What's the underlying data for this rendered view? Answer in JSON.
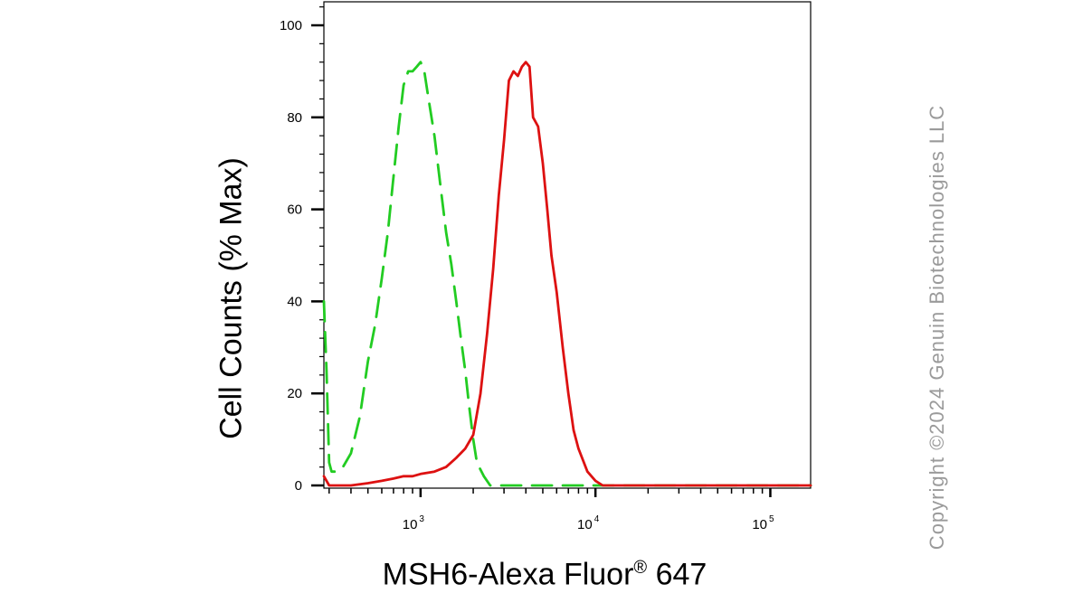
{
  "chart_data": {
    "type": "line",
    "xlabel_main": "MSH6-Alexa Fluor",
    "xlabel_reg": "®",
    "xlabel_tail": " 647",
    "ylabel": "Cell Counts (% Max)",
    "x_scale": "log",
    "xlim": [
      280,
      170000
    ],
    "ylim": [
      0,
      105
    ],
    "y_ticks": [
      0,
      20,
      40,
      60,
      80,
      100
    ],
    "x_ticks": [
      {
        "value": 1000,
        "base": "10",
        "exp": "3"
      },
      {
        "value": 10000,
        "base": "10",
        "exp": "4"
      },
      {
        "value": 100000,
        "base": "10",
        "exp": "5"
      }
    ],
    "grid": false,
    "series": [
      {
        "color": "#22cc22",
        "style": "dashed",
        "x": [
          280,
          290,
          300,
          310,
          330,
          360,
          400,
          450,
          500,
          550,
          600,
          650,
          700,
          750,
          800,
          850,
          900,
          950,
          1000,
          1050,
          1100,
          1200,
          1300,
          1400,
          1500,
          1600,
          1700,
          1800,
          1900,
          2000,
          2100,
          2300,
          2500,
          3000,
          3500,
          4000,
          5000,
          6000,
          8000,
          10000,
          20000,
          50000,
          100000,
          170000
        ],
        "y": [
          40,
          25,
          5,
          3,
          3,
          4,
          7,
          15,
          27,
          35,
          45,
          55,
          67,
          78,
          87,
          90,
          90,
          91,
          92,
          90,
          85,
          76,
          65,
          55,
          48,
          40,
          32,
          25,
          17,
          10,
          5,
          2,
          0,
          0,
          0,
          0,
          0,
          0,
          0,
          0,
          0,
          0,
          0,
          0
        ]
      },
      {
        "color": "#dd1111",
        "style": "solid",
        "x": [
          280,
          300,
          350,
          400,
          500,
          600,
          700,
          800,
          900,
          1000,
          1200,
          1400,
          1600,
          1800,
          2000,
          2200,
          2400,
          2600,
          2800,
          3000,
          3200,
          3400,
          3600,
          3800,
          4000,
          4200,
          4400,
          4700,
          5000,
          5300,
          5600,
          6000,
          6500,
          7000,
          7500,
          8000,
          9000,
          10000,
          11000,
          13000,
          20000,
          50000,
          100000,
          170000
        ],
        "y": [
          2,
          0,
          0,
          0,
          0.5,
          1,
          1.5,
          2,
          2,
          2.5,
          3,
          4,
          6,
          8,
          11,
          20,
          33,
          47,
          63,
          75,
          88,
          90,
          89,
          91,
          92,
          91,
          80,
          78,
          70,
          60,
          50,
          42,
          30,
          20,
          12,
          8,
          3,
          1,
          0,
          0,
          0,
          0,
          0,
          0
        ]
      }
    ]
  },
  "copyright": "Copyright ©2024 Genuin Biotechnologies LLC"
}
